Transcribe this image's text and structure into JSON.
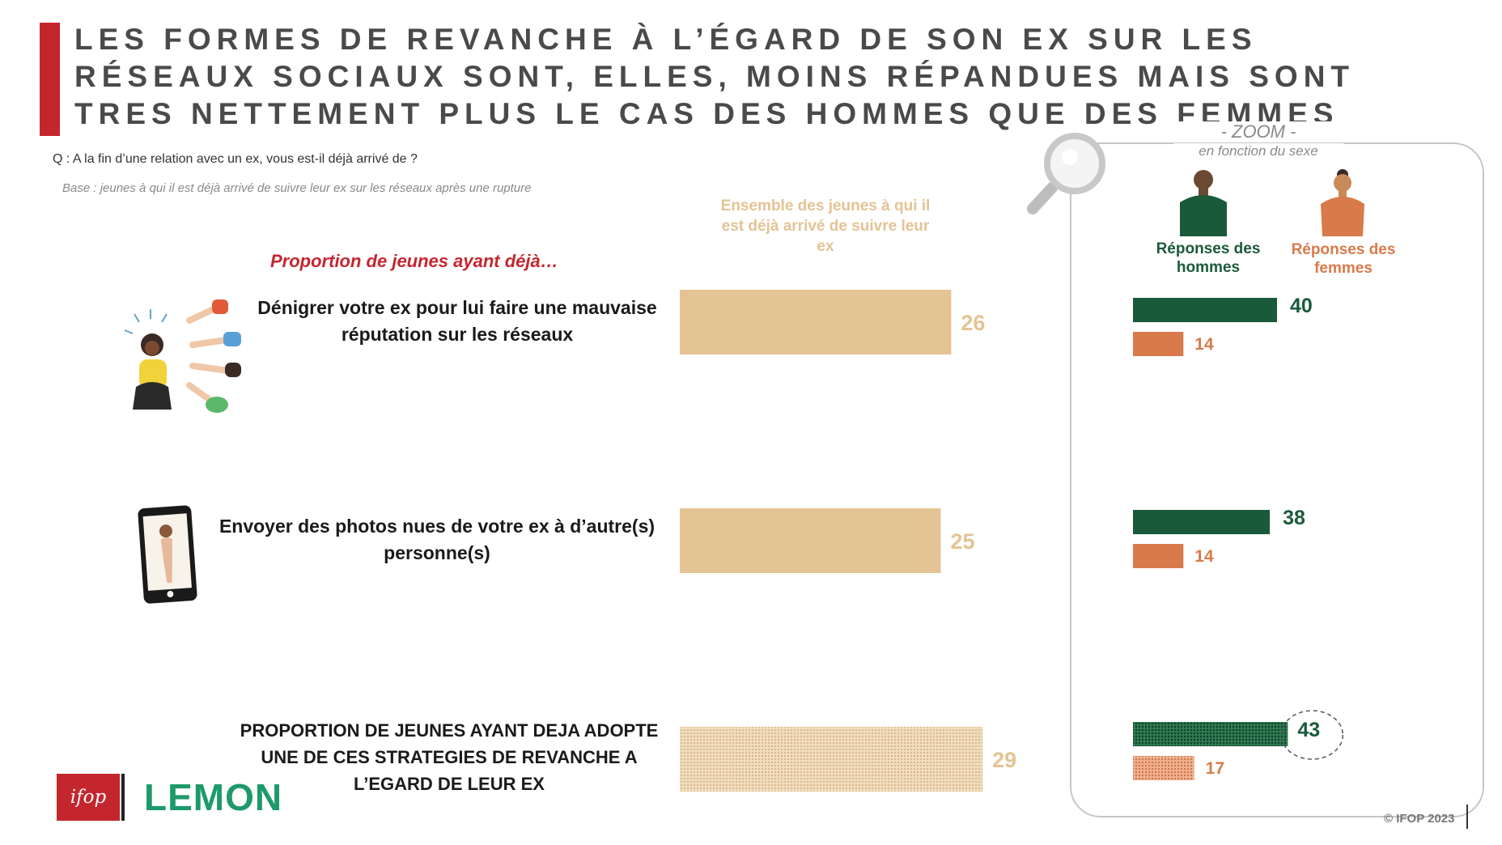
{
  "title": "LES FORMES DE REVANCHE À L’ÉGARD DE SON EX SUR LES RÉSEAUX SOCIAUX SONT, ELLES, MOINS RÉPANDUES MAIS SONT TRES NETTEMENT PLUS LE CAS DES HOMMES QUE DES FEMMES",
  "question": "Q : A la fin d’une relation avec un ex, vous est-il déjà arrivé de ?",
  "base": "Base : jeunes à qui il est déjà arrivé de suivre leur ex sur les réseaux après une rupture",
  "proportion_heading": "Proportion de jeunes ayant déjà…",
  "overall_heading": "Ensemble des jeunes à qui il est déjà arrivé de suivre leur ex",
  "zoom": {
    "title": "- ZOOM -",
    "subtitle": "en fonction du sexe",
    "men_label": "Réponses des hommes",
    "women_label": "Réponses des femmes"
  },
  "copyright": "© IFOP 2023",
  "logos": {
    "ifop": "ifop",
    "lemon": "LEMON"
  },
  "icons": [
    "magnifier-icon",
    "man-icon",
    "woman-icon",
    "pointing-hands-illustration",
    "smartphone-photo-illustration"
  ],
  "colors": {
    "overall": "#e4c394",
    "men": "#1a5a3a",
    "women": "#d97a4a",
    "accent": "#c4262e"
  },
  "chart_data": {
    "type": "bar",
    "orientation": "horizontal",
    "categories": [
      "Dénigrer votre ex pour lui faire une mauvaise réputation sur les réseaux",
      "Envoyer des photos nues de votre ex à d’autre(s) personne(s)",
      "PROPORTION DE JEUNES AYANT DEJA ADOPTE UNE DE CES STRATEGIES DE REVANCHE A L’EGARD DE LEUR EX"
    ],
    "series": [
      {
        "name": "Ensemble des jeunes à qui il est déjà arrivé de suivre leur ex",
        "values": [
          26,
          25,
          29
        ]
      },
      {
        "name": "Réponses des hommes",
        "values": [
          40,
          38,
          43
        ]
      },
      {
        "name": "Réponses des femmes",
        "values": [
          14,
          14,
          17
        ]
      }
    ],
    "xlim": [
      0,
      100
    ]
  }
}
